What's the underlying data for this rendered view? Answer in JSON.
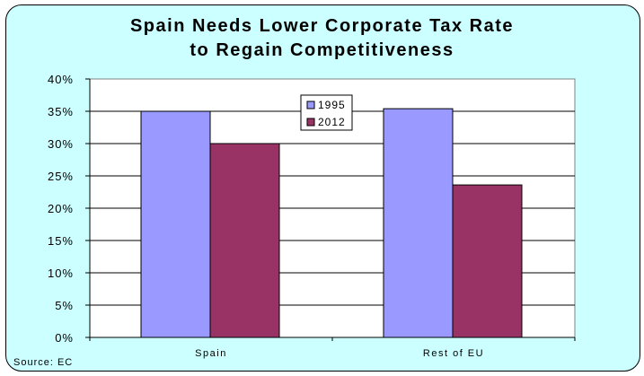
{
  "chart_data": {
    "type": "bar",
    "title": "Spain Needs Lower Corporate Tax Rate to Regain Competitiveness",
    "title_lines": [
      "Spain Needs Lower Corporate Tax Rate",
      "to Regain Competitiveness"
    ],
    "categories": [
      "Spain",
      "Rest of EU"
    ],
    "series": [
      {
        "name": "1995",
        "values": [
          35.0,
          35.4
        ],
        "color": "#9999ff"
      },
      {
        "name": "2012",
        "values": [
          30.0,
          23.6
        ],
        "color": "#993366"
      }
    ],
    "xlabel": "",
    "ylabel": "",
    "ylim": [
      0,
      40
    ],
    "yticks": [
      "0%",
      "5%",
      "10%",
      "15%",
      "20%",
      "25%",
      "30%",
      "35%",
      "40%"
    ],
    "ytick_values": [
      0,
      5,
      10,
      15,
      20,
      25,
      30,
      35,
      40
    ],
    "grid": true,
    "legend_position": "top-center",
    "source": "Source: EC"
  },
  "colors": {
    "background": "#ccffff",
    "plot_background": "#ffffff"
  }
}
